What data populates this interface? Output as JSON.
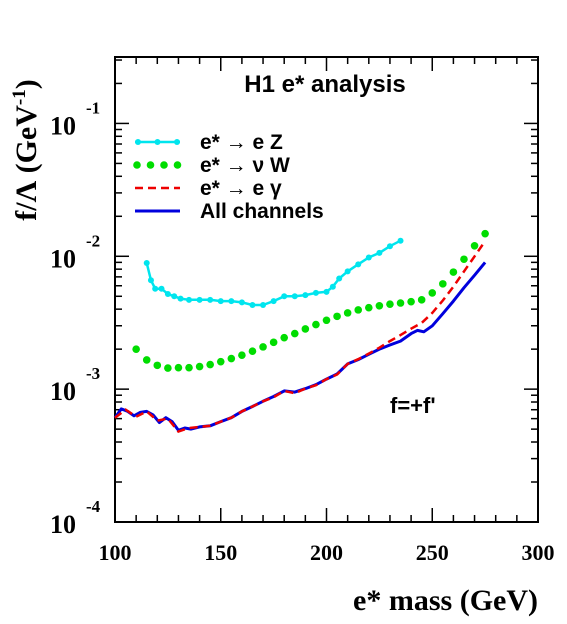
{
  "chart_data": {
    "type": "line",
    "title": "H1 e* analysis",
    "xlabel": "e* mass (GeV)",
    "ylabel": "f/Λ (GeV",
    "ylabel_exp": "-1",
    "ylabel_close": ")",
    "annotation": "f=+f'",
    "xlim": [
      100,
      300
    ],
    "ylim_exp": [
      -4,
      -0.5
    ],
    "yscale": "log",
    "xticks": [
      "100",
      "150",
      "200",
      "250",
      "300"
    ],
    "yticks": [
      {
        "base": "10",
        "exp": "-1",
        "value": 0.1
      },
      {
        "base": "10",
        "exp": "-2",
        "value": 0.01
      },
      {
        "base": "10",
        "exp": "-3",
        "value": 0.001
      },
      {
        "base": "10",
        "exp": "-4",
        "value": 0.0001
      }
    ],
    "series": [
      {
        "name": "e* → e Z",
        "color": "#00e5ee",
        "style": "line-markers",
        "points": [
          [
            115,
            0.0089
          ],
          [
            117,
            0.0066
          ],
          [
            119,
            0.0057
          ],
          [
            122,
            0.0057
          ],
          [
            125,
            0.0052
          ],
          [
            128,
            0.005
          ],
          [
            131,
            0.0048
          ],
          [
            135,
            0.0047
          ],
          [
            140,
            0.0047
          ],
          [
            145,
            0.0047
          ],
          [
            150,
            0.0046
          ],
          [
            155,
            0.0046
          ],
          [
            160,
            0.0045
          ],
          [
            165,
            0.0043
          ],
          [
            170,
            0.0043
          ],
          [
            175,
            0.0046
          ],
          [
            180,
            0.005
          ],
          [
            185,
            0.005
          ],
          [
            190,
            0.0051
          ],
          [
            195,
            0.0053
          ],
          [
            200,
            0.0054
          ],
          [
            203,
            0.0059
          ],
          [
            206,
            0.0068
          ],
          [
            210,
            0.0077
          ],
          [
            215,
            0.0087
          ],
          [
            220,
            0.0098
          ],
          [
            225,
            0.0106
          ],
          [
            230,
            0.0119
          ],
          [
            235,
            0.0131
          ]
        ]
      },
      {
        "name": "e* → ν W",
        "color": "#00dd00",
        "style": "dots",
        "points": [
          [
            110,
            0.002
          ],
          [
            115,
            0.00166
          ],
          [
            120,
            0.00151
          ],
          [
            125,
            0.00144
          ],
          [
            130,
            0.00145
          ],
          [
            135,
            0.00145
          ],
          [
            140,
            0.00148
          ],
          [
            145,
            0.00153
          ],
          [
            150,
            0.00161
          ],
          [
            155,
            0.0017
          ],
          [
            160,
            0.0018
          ],
          [
            165,
            0.00193
          ],
          [
            170,
            0.00208
          ],
          [
            175,
            0.00225
          ],
          [
            180,
            0.00244
          ],
          [
            185,
            0.00262
          ],
          [
            190,
            0.00284
          ],
          [
            195,
            0.00306
          ],
          [
            200,
            0.0033
          ],
          [
            205,
            0.00353
          ],
          [
            210,
            0.00375
          ],
          [
            215,
            0.00395
          ],
          [
            220,
            0.0041
          ],
          [
            225,
            0.00424
          ],
          [
            230,
            0.00436
          ],
          [
            235,
            0.00445
          ],
          [
            240,
            0.00455
          ],
          [
            245,
            0.0047
          ],
          [
            250,
            0.0053
          ],
          [
            255,
            0.0062
          ],
          [
            260,
            0.0076
          ],
          [
            265,
            0.0095
          ],
          [
            270,
            0.012
          ],
          [
            275,
            0.0148
          ]
        ]
      },
      {
        "name": "e* → e γ",
        "color": "#ee0000",
        "style": "dashed",
        "points": [
          [
            100,
            0.00061
          ],
          [
            105,
            0.0007
          ],
          [
            110,
            0.00062
          ],
          [
            115,
            0.00068
          ],
          [
            120,
            0.00058
          ],
          [
            125,
            0.0006
          ],
          [
            130,
            0.00048
          ],
          [
            135,
            0.00051
          ],
          [
            140,
            0.00052
          ],
          [
            145,
            0.00053
          ],
          [
            150,
            0.00057
          ],
          [
            155,
            0.00061
          ],
          [
            160,
            0.00068
          ],
          [
            165,
            0.00074
          ],
          [
            170,
            0.00081
          ],
          [
            175,
            0.00087
          ],
          [
            180,
            0.00097
          ],
          [
            185,
            0.00093
          ],
          [
            190,
            0.00101
          ],
          [
            195,
            0.00107
          ],
          [
            200,
            0.00119
          ],
          [
            205,
            0.00129
          ],
          [
            210,
            0.00155
          ],
          [
            215,
            0.00168
          ],
          [
            220,
            0.00185
          ],
          [
            225,
            0.00205
          ],
          [
            230,
            0.0023
          ],
          [
            235,
            0.00255
          ],
          [
            240,
            0.00285
          ],
          [
            245,
            0.00315
          ],
          [
            250,
            0.00375
          ],
          [
            255,
            0.00465
          ],
          [
            260,
            0.0059
          ],
          [
            265,
            0.0077
          ],
          [
            270,
            0.01
          ],
          [
            275,
            0.013
          ]
        ]
      },
      {
        "name": "All channels",
        "color": "#0000dd",
        "style": "solid",
        "points": [
          [
            100,
            0.00061
          ],
          [
            103,
            0.00071
          ],
          [
            106,
            0.00068
          ],
          [
            109,
            0.00063
          ],
          [
            112,
            0.00067
          ],
          [
            115,
            0.00068
          ],
          [
            118,
            0.00064
          ],
          [
            121,
            0.00056
          ],
          [
            124,
            0.00061
          ],
          [
            127,
            0.00057
          ],
          [
            130,
            0.00049
          ],
          [
            133,
            0.00051
          ],
          [
            136,
            0.0005
          ],
          [
            140,
            0.00052
          ],
          [
            145,
            0.00053
          ],
          [
            150,
            0.00057
          ],
          [
            155,
            0.00061
          ],
          [
            160,
            0.00068
          ],
          [
            165,
            0.00074
          ],
          [
            170,
            0.00081
          ],
          [
            175,
            0.00088
          ],
          [
            180,
            0.00097
          ],
          [
            185,
            0.00095
          ],
          [
            190,
            0.00101
          ],
          [
            195,
            0.00108
          ],
          [
            200,
            0.00119
          ],
          [
            205,
            0.0013
          ],
          [
            210,
            0.00155
          ],
          [
            215,
            0.00167
          ],
          [
            220,
            0.00183
          ],
          [
            225,
            0.002
          ],
          [
            230,
            0.00215
          ],
          [
            235,
            0.0023
          ],
          [
            240,
            0.00262
          ],
          [
            243,
            0.00277
          ],
          [
            246,
            0.0027
          ],
          [
            250,
            0.003
          ],
          [
            255,
            0.0037
          ],
          [
            260,
            0.0046
          ],
          [
            265,
            0.0058
          ],
          [
            270,
            0.0072
          ],
          [
            275,
            0.009
          ]
        ]
      }
    ],
    "legend": {
      "position": "top-left"
    }
  }
}
